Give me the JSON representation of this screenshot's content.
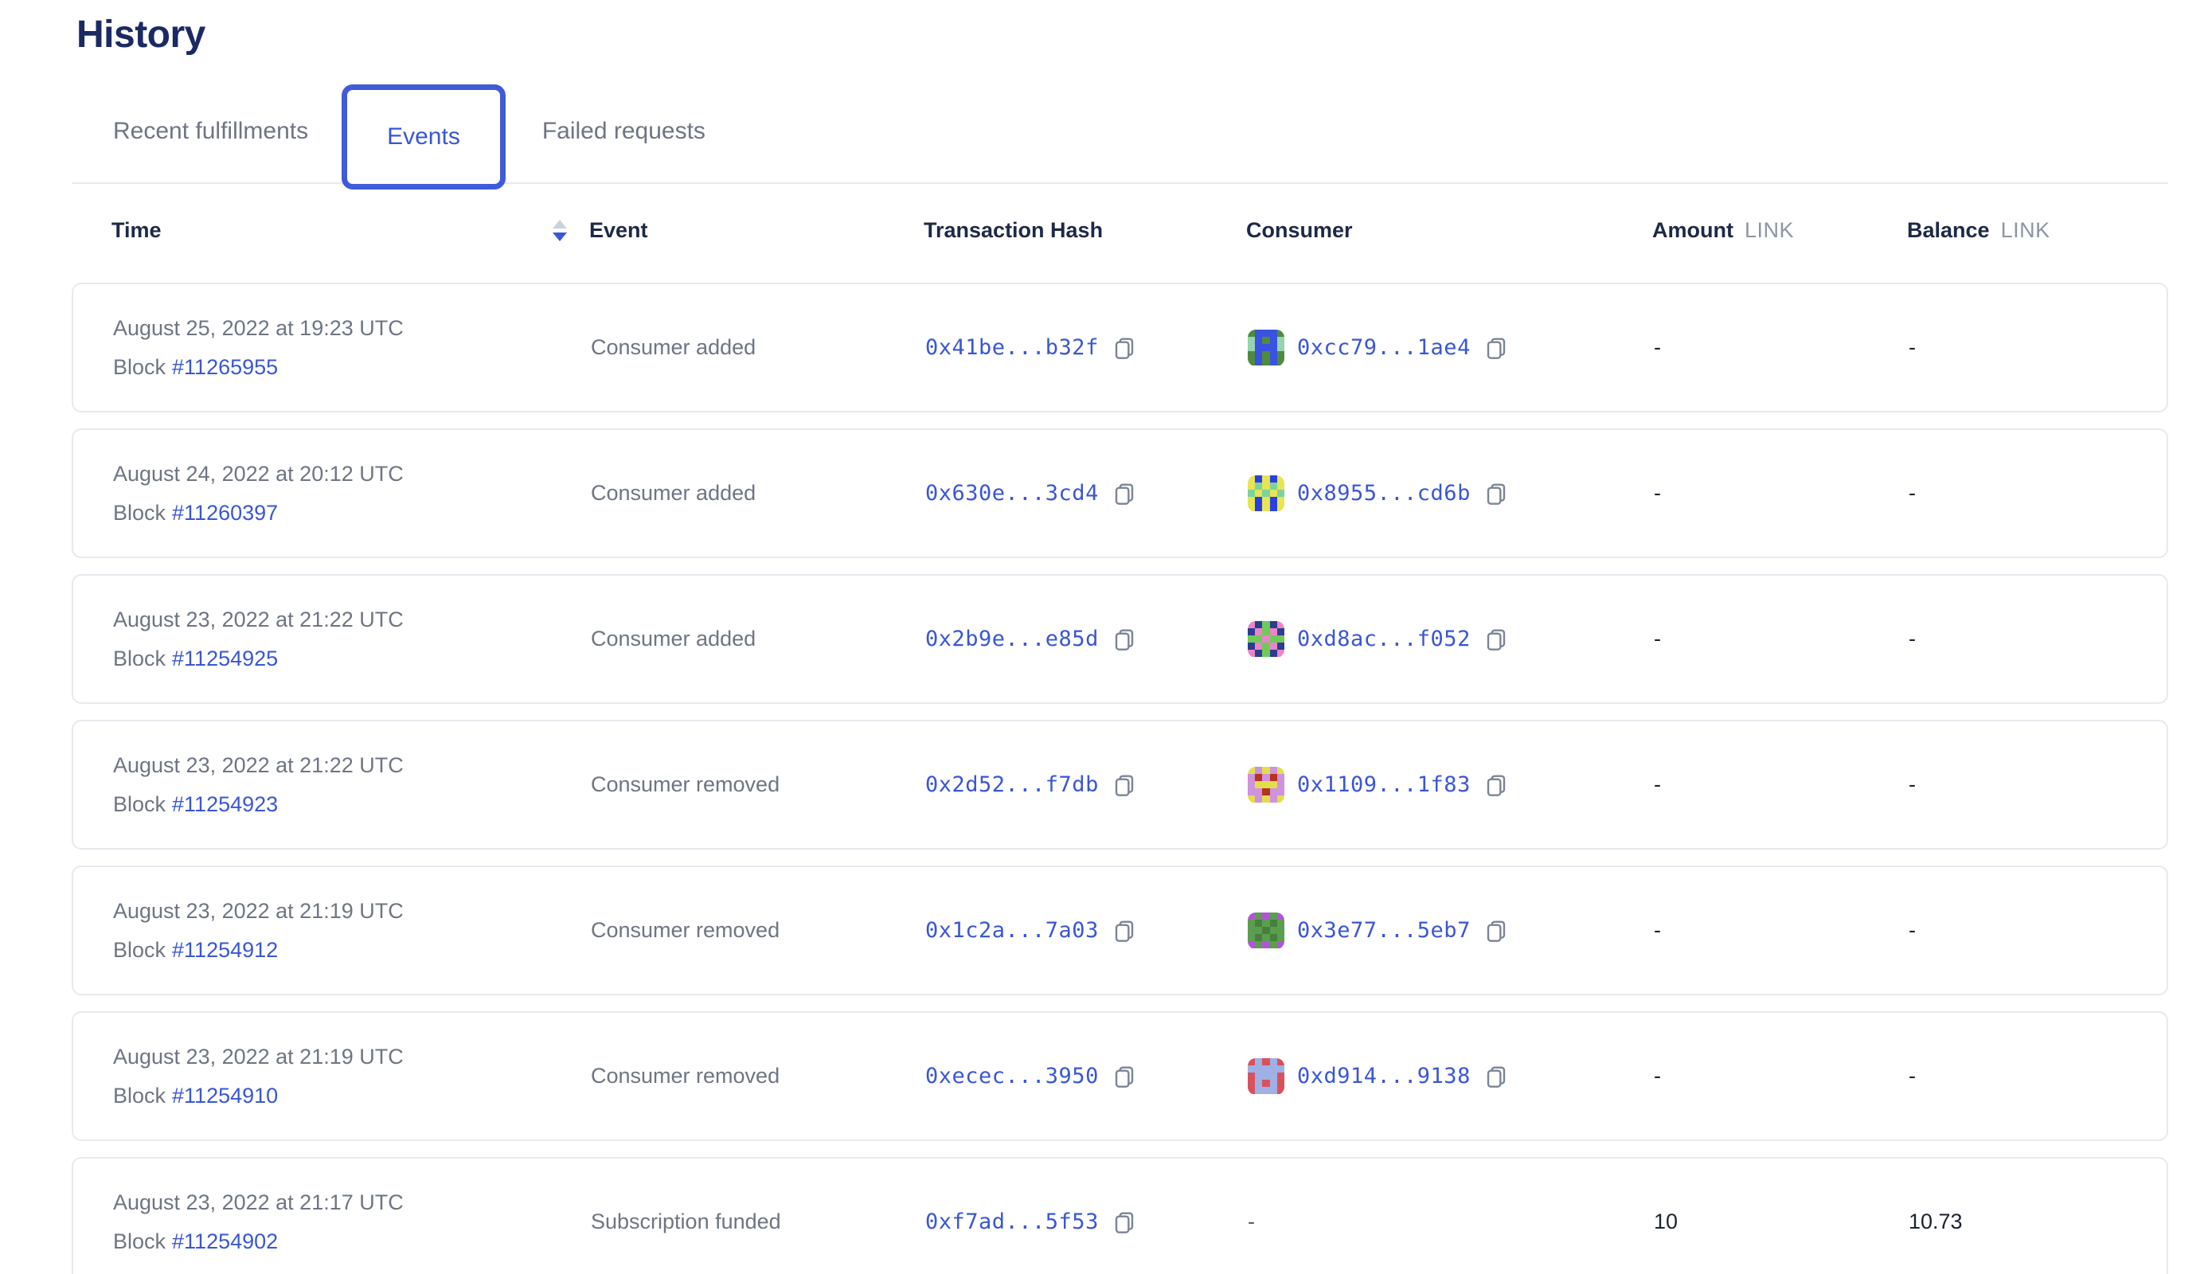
{
  "page": {
    "title": "History"
  },
  "tabs": [
    {
      "label": "Recent fulfillments",
      "active": false
    },
    {
      "label": "Events",
      "active": true
    },
    {
      "label": "Failed requests",
      "active": false
    }
  ],
  "table": {
    "columns": {
      "time": "Time",
      "event": "Event",
      "tx": "Transaction Hash",
      "consumer": "Consumer",
      "amount": "Amount",
      "balance": "Balance",
      "unit": "LINK"
    },
    "sort": {
      "column": "Time",
      "direction": "desc"
    },
    "block_label": "Block",
    "rows": [
      {
        "date": "August 25, 2022 at 19:23 UTC",
        "block": "#11265955",
        "event": "Consumer added",
        "tx": "0x41be...b32f",
        "consumer": "0xcc79...1ae4",
        "amount": "-",
        "balance": "-",
        "avatar": {
          "colors": [
            "#4e8b3d",
            "#3952e0",
            "#96d4ae"
          ],
          "pattern": [
            0,
            1,
            1,
            1,
            0,
            2,
            1,
            0,
            1,
            2,
            2,
            1,
            1,
            1,
            2,
            0,
            1,
            0,
            1,
            0,
            0,
            1,
            0,
            1,
            0
          ]
        }
      },
      {
        "date": "August 24, 2022 at 20:12 UTC",
        "block": "#11260397",
        "event": "Consumer added",
        "tx": "0x630e...3cd4",
        "consumer": "0x8955...cd6b",
        "amount": "-",
        "balance": "-",
        "avatar": {
          "colors": [
            "#2a3fe0",
            "#e7e455",
            "#7fd29a"
          ],
          "pattern": [
            1,
            0,
            1,
            0,
            1,
            1,
            2,
            1,
            2,
            1,
            2,
            1,
            2,
            1,
            2,
            1,
            0,
            1,
            0,
            1,
            1,
            0,
            1,
            0,
            1
          ]
        }
      },
      {
        "date": "August 23, 2022 at 21:22 UTC",
        "block": "#11254925",
        "event": "Consumer added",
        "tx": "0x2b9e...e85d",
        "consumer": "0xd8ac...f052",
        "amount": "-",
        "balance": "-",
        "avatar": {
          "colors": [
            "#6fca5a",
            "#ea86c6",
            "#2c3c93"
          ],
          "pattern": [
            1,
            2,
            0,
            2,
            1,
            2,
            1,
            0,
            1,
            2,
            0,
            0,
            1,
            0,
            0,
            2,
            1,
            0,
            1,
            2,
            1,
            2,
            0,
            2,
            1
          ]
        }
      },
      {
        "date": "August 23, 2022 at 21:22 UTC",
        "block": "#11254923",
        "event": "Consumer removed",
        "tx": "0x2d52...f7db",
        "consumer": "0x1109...1f83",
        "amount": "-",
        "balance": "-",
        "avatar": {
          "colors": [
            "#cf92dc",
            "#e3dd4e",
            "#b5331f"
          ],
          "pattern": [
            1,
            0,
            1,
            0,
            1,
            0,
            2,
            0,
            2,
            0,
            0,
            1,
            1,
            1,
            0,
            0,
            0,
            2,
            0,
            0,
            1,
            0,
            1,
            0,
            1
          ]
        }
      },
      {
        "date": "August 23, 2022 at 21:19 UTC",
        "block": "#11254912",
        "event": "Consumer removed",
        "tx": "0x1c2a...7a03",
        "consumer": "0x3e77...5eb7",
        "amount": "-",
        "balance": "-",
        "avatar": {
          "colors": [
            "#5c9e50",
            "#b055d8",
            "#46803c"
          ],
          "pattern": [
            1,
            0,
            1,
            0,
            1,
            0,
            2,
            0,
            2,
            0,
            0,
            0,
            2,
            0,
            0,
            0,
            2,
            0,
            2,
            0,
            1,
            0,
            1,
            0,
            1
          ]
        }
      },
      {
        "date": "August 23, 2022 at 21:19 UTC",
        "block": "#11254910",
        "event": "Consumer removed",
        "tx": "0xecec...3950",
        "consumer": "0xd914...9138",
        "amount": "-",
        "balance": "-",
        "avatar": {
          "colors": [
            "#d8525e",
            "#9fb0e4",
            "#c4707a"
          ],
          "pattern": [
            0,
            1,
            0,
            1,
            0,
            1,
            1,
            1,
            1,
            1,
            0,
            1,
            1,
            1,
            0,
            0,
            1,
            0,
            1,
            0,
            0,
            1,
            1,
            1,
            0
          ]
        }
      },
      {
        "date": "August 23, 2022 at 21:17 UTC",
        "block": "#11254902",
        "event": "Subscription funded",
        "tx": "0xf7ad...5f53",
        "consumer": "-",
        "amount": "10",
        "balance": "10.73",
        "avatar": null
      }
    ]
  },
  "colors": {
    "accent_blue": "#3956d5",
    "title_navy": "#1b2a63",
    "header_navy": "#1e2947",
    "text_gray": "#6e7582",
    "unit_gray": "#8d95a5",
    "value_navy": "#1c2231",
    "card_border": "#e8e9ee"
  }
}
